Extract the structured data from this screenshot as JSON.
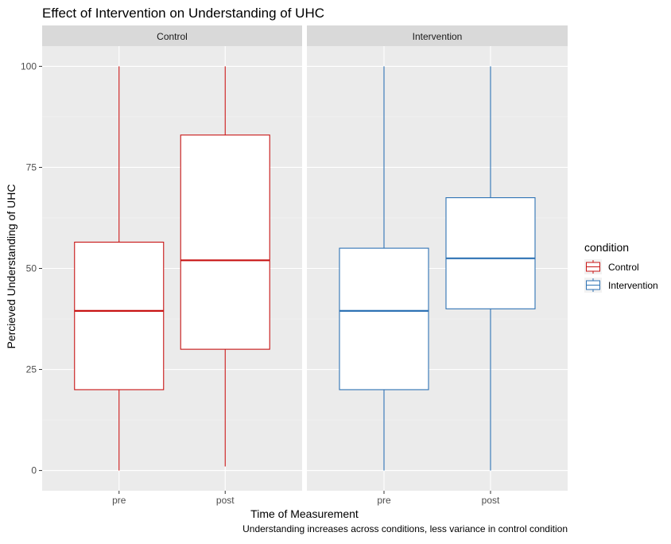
{
  "chart_data": {
    "type": "boxplot",
    "title": "Effect of Intervention on Understanding of UHC",
    "xlabel": "Time of Measurement",
    "ylabel": "Percieved Understanding of UHC",
    "caption": "Understanding increases across conditions, less variance in control condition",
    "ylim": [
      -5,
      105
    ],
    "yticks": [
      0,
      25,
      50,
      75,
      100
    ],
    "categories": [
      "pre",
      "post"
    ],
    "facets": [
      "Control",
      "Intervention"
    ],
    "legend": {
      "title": "condition",
      "position": "right",
      "entries": [
        {
          "label": "Control",
          "color": "#c81414"
        },
        {
          "label": "Intervention",
          "color": "#2e72b4"
        }
      ]
    },
    "series": [
      {
        "name": "Control",
        "color": "#c81414",
        "boxes": [
          {
            "x": "pre",
            "min": 0,
            "q1": 20,
            "median": 39.5,
            "q3": 56.5,
            "max": 100
          },
          {
            "x": "post",
            "min": 1,
            "q1": 30,
            "median": 52,
            "q3": 83,
            "max": 100
          }
        ]
      },
      {
        "name": "Intervention",
        "color": "#2e72b4",
        "boxes": [
          {
            "x": "pre",
            "min": 0,
            "q1": 20,
            "median": 39.5,
            "q3": 55,
            "max": 100
          },
          {
            "x": "post",
            "min": 0,
            "q1": 40,
            "median": 52.5,
            "q3": 67.5,
            "max": 100
          }
        ]
      }
    ],
    "grid": true,
    "panel_background": "#ebebeb",
    "strip_background": "#d9d9d9"
  }
}
